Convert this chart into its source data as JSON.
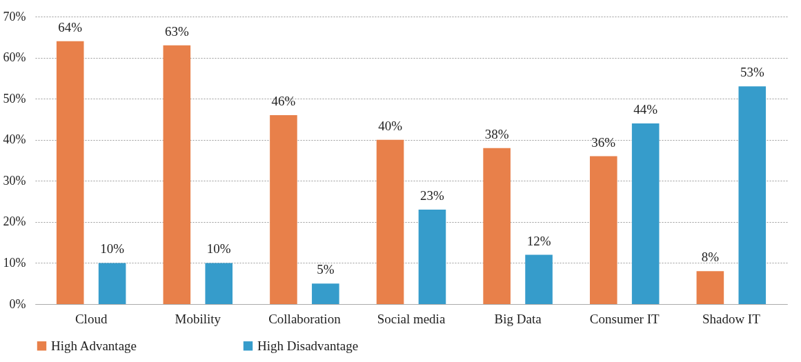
{
  "chart_data": {
    "type": "bar",
    "categories": [
      "Cloud",
      "Mobility",
      "Collaboration",
      "Social media",
      "Big Data",
      "Consumer IT",
      "Shadow IT"
    ],
    "series": [
      {
        "name": "High Advantage",
        "color": "#e8804a",
        "values": [
          64,
          63,
          46,
          40,
          38,
          36,
          8
        ],
        "value_labels": [
          "64%",
          "63%",
          "46%",
          "40%",
          "38%",
          "36%",
          "8%"
        ]
      },
      {
        "name": "High Disadvantage",
        "color": "#369ccb",
        "values": [
          10,
          10,
          5,
          23,
          12,
          44,
          53
        ],
        "value_labels": [
          "10%",
          "10%",
          "5%",
          "23%",
          "12%",
          "44%",
          "53%"
        ]
      }
    ],
    "ylim": [
      0,
      70
    ],
    "yticks": [
      {
        "value": 0,
        "label": "0%"
      },
      {
        "value": 10,
        "label": "10%"
      },
      {
        "value": 20,
        "label": "20%"
      },
      {
        "value": 30,
        "label": "30%"
      },
      {
        "value": 40,
        "label": "40%"
      },
      {
        "value": 50,
        "label": "50%"
      },
      {
        "value": 60,
        "label": "60%"
      },
      {
        "value": 70,
        "label": "70%"
      }
    ],
    "grid": "y",
    "legend": "bottom"
  }
}
